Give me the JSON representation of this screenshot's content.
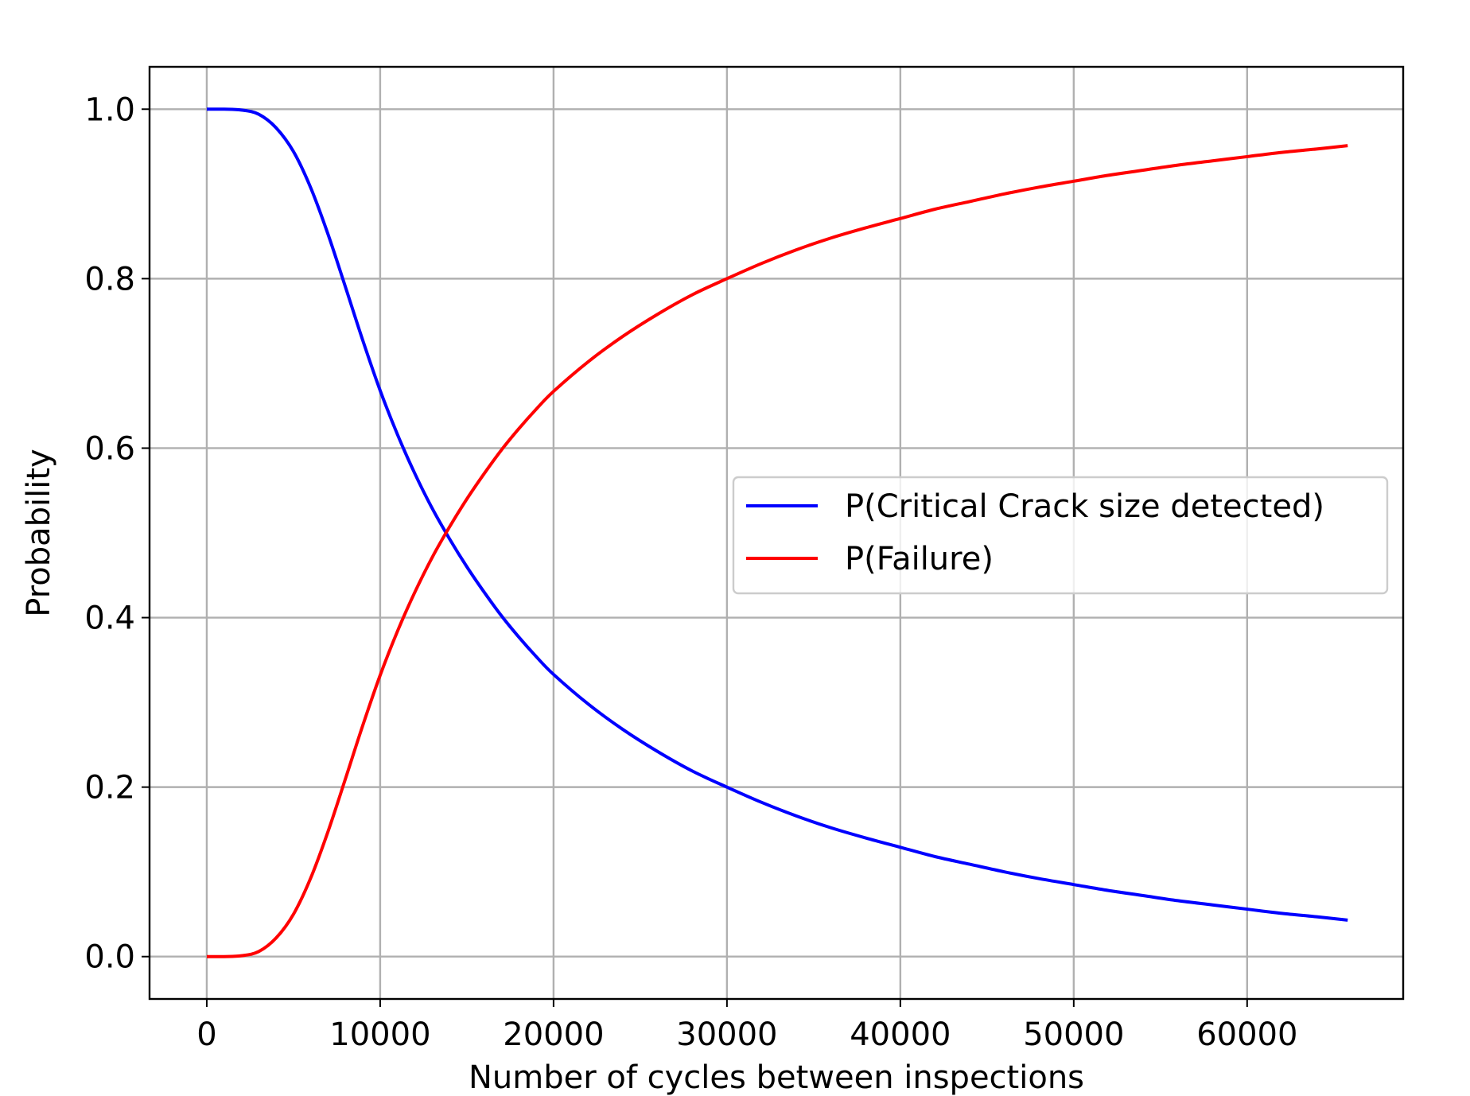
{
  "chart_data": {
    "type": "line",
    "title": "",
    "xlabel": "Number of cycles between inspections",
    "ylabel": "Probability",
    "xlim": [
      -3300,
      69000
    ],
    "ylim": [
      -0.05,
      1.05
    ],
    "xticks": [
      0,
      10000,
      20000,
      30000,
      40000,
      50000,
      60000
    ],
    "xtick_labels": [
      "0",
      "10000",
      "20000",
      "30000",
      "40000",
      "50000",
      "60000"
    ],
    "yticks": [
      0.0,
      0.2,
      0.4,
      0.6,
      0.8,
      1.0
    ],
    "ytick_labels": [
      "0.0",
      "0.2",
      "0.4",
      "0.6",
      "0.8",
      "1.0"
    ],
    "grid": true,
    "legend": {
      "position": "center-right"
    },
    "x": [
      0,
      1000,
      2000,
      3000,
      4000,
      5000,
      6000,
      7000,
      8000,
      9000,
      10000,
      11000,
      12000,
      13000,
      14000,
      15000,
      16000,
      17000,
      18000,
      19000,
      20000,
      22000,
      24000,
      26000,
      28000,
      30000,
      32000,
      34000,
      36000,
      38000,
      40000,
      42000,
      44000,
      46000,
      48000,
      50000,
      52000,
      54000,
      56000,
      58000,
      60000,
      62000,
      64000,
      65800
    ],
    "series": [
      {
        "name": "P(Critical Crack size detected)",
        "color": "#0000ff",
        "values": [
          1.0,
          1.0,
          0.999,
          0.994,
          0.978,
          0.95,
          0.907,
          0.852,
          0.79,
          0.727,
          0.668,
          0.616,
          0.57,
          0.529,
          0.493,
          0.46,
          0.43,
          0.402,
          0.377,
          0.354,
          0.333,
          0.298,
          0.268,
          0.242,
          0.219,
          0.2,
          0.182,
          0.166,
          0.152,
          0.14,
          0.129,
          0.118,
          0.109,
          0.1,
          0.092,
          0.085,
          0.078,
          0.072,
          0.066,
          0.061,
          0.056,
          0.051,
          0.047,
          0.043
        ]
      },
      {
        "name": "P(Failure)",
        "color": "#ff0000",
        "values": [
          0.0,
          0.0,
          0.001,
          0.006,
          0.022,
          0.05,
          0.093,
          0.148,
          0.21,
          0.273,
          0.332,
          0.384,
          0.43,
          0.471,
          0.507,
          0.54,
          0.57,
          0.598,
          0.623,
          0.646,
          0.667,
          0.702,
          0.732,
          0.758,
          0.781,
          0.8,
          0.818,
          0.834,
          0.848,
          0.86,
          0.871,
          0.882,
          0.891,
          0.9,
          0.908,
          0.915,
          0.922,
          0.928,
          0.934,
          0.939,
          0.944,
          0.949,
          0.953,
          0.957
        ]
      }
    ]
  }
}
